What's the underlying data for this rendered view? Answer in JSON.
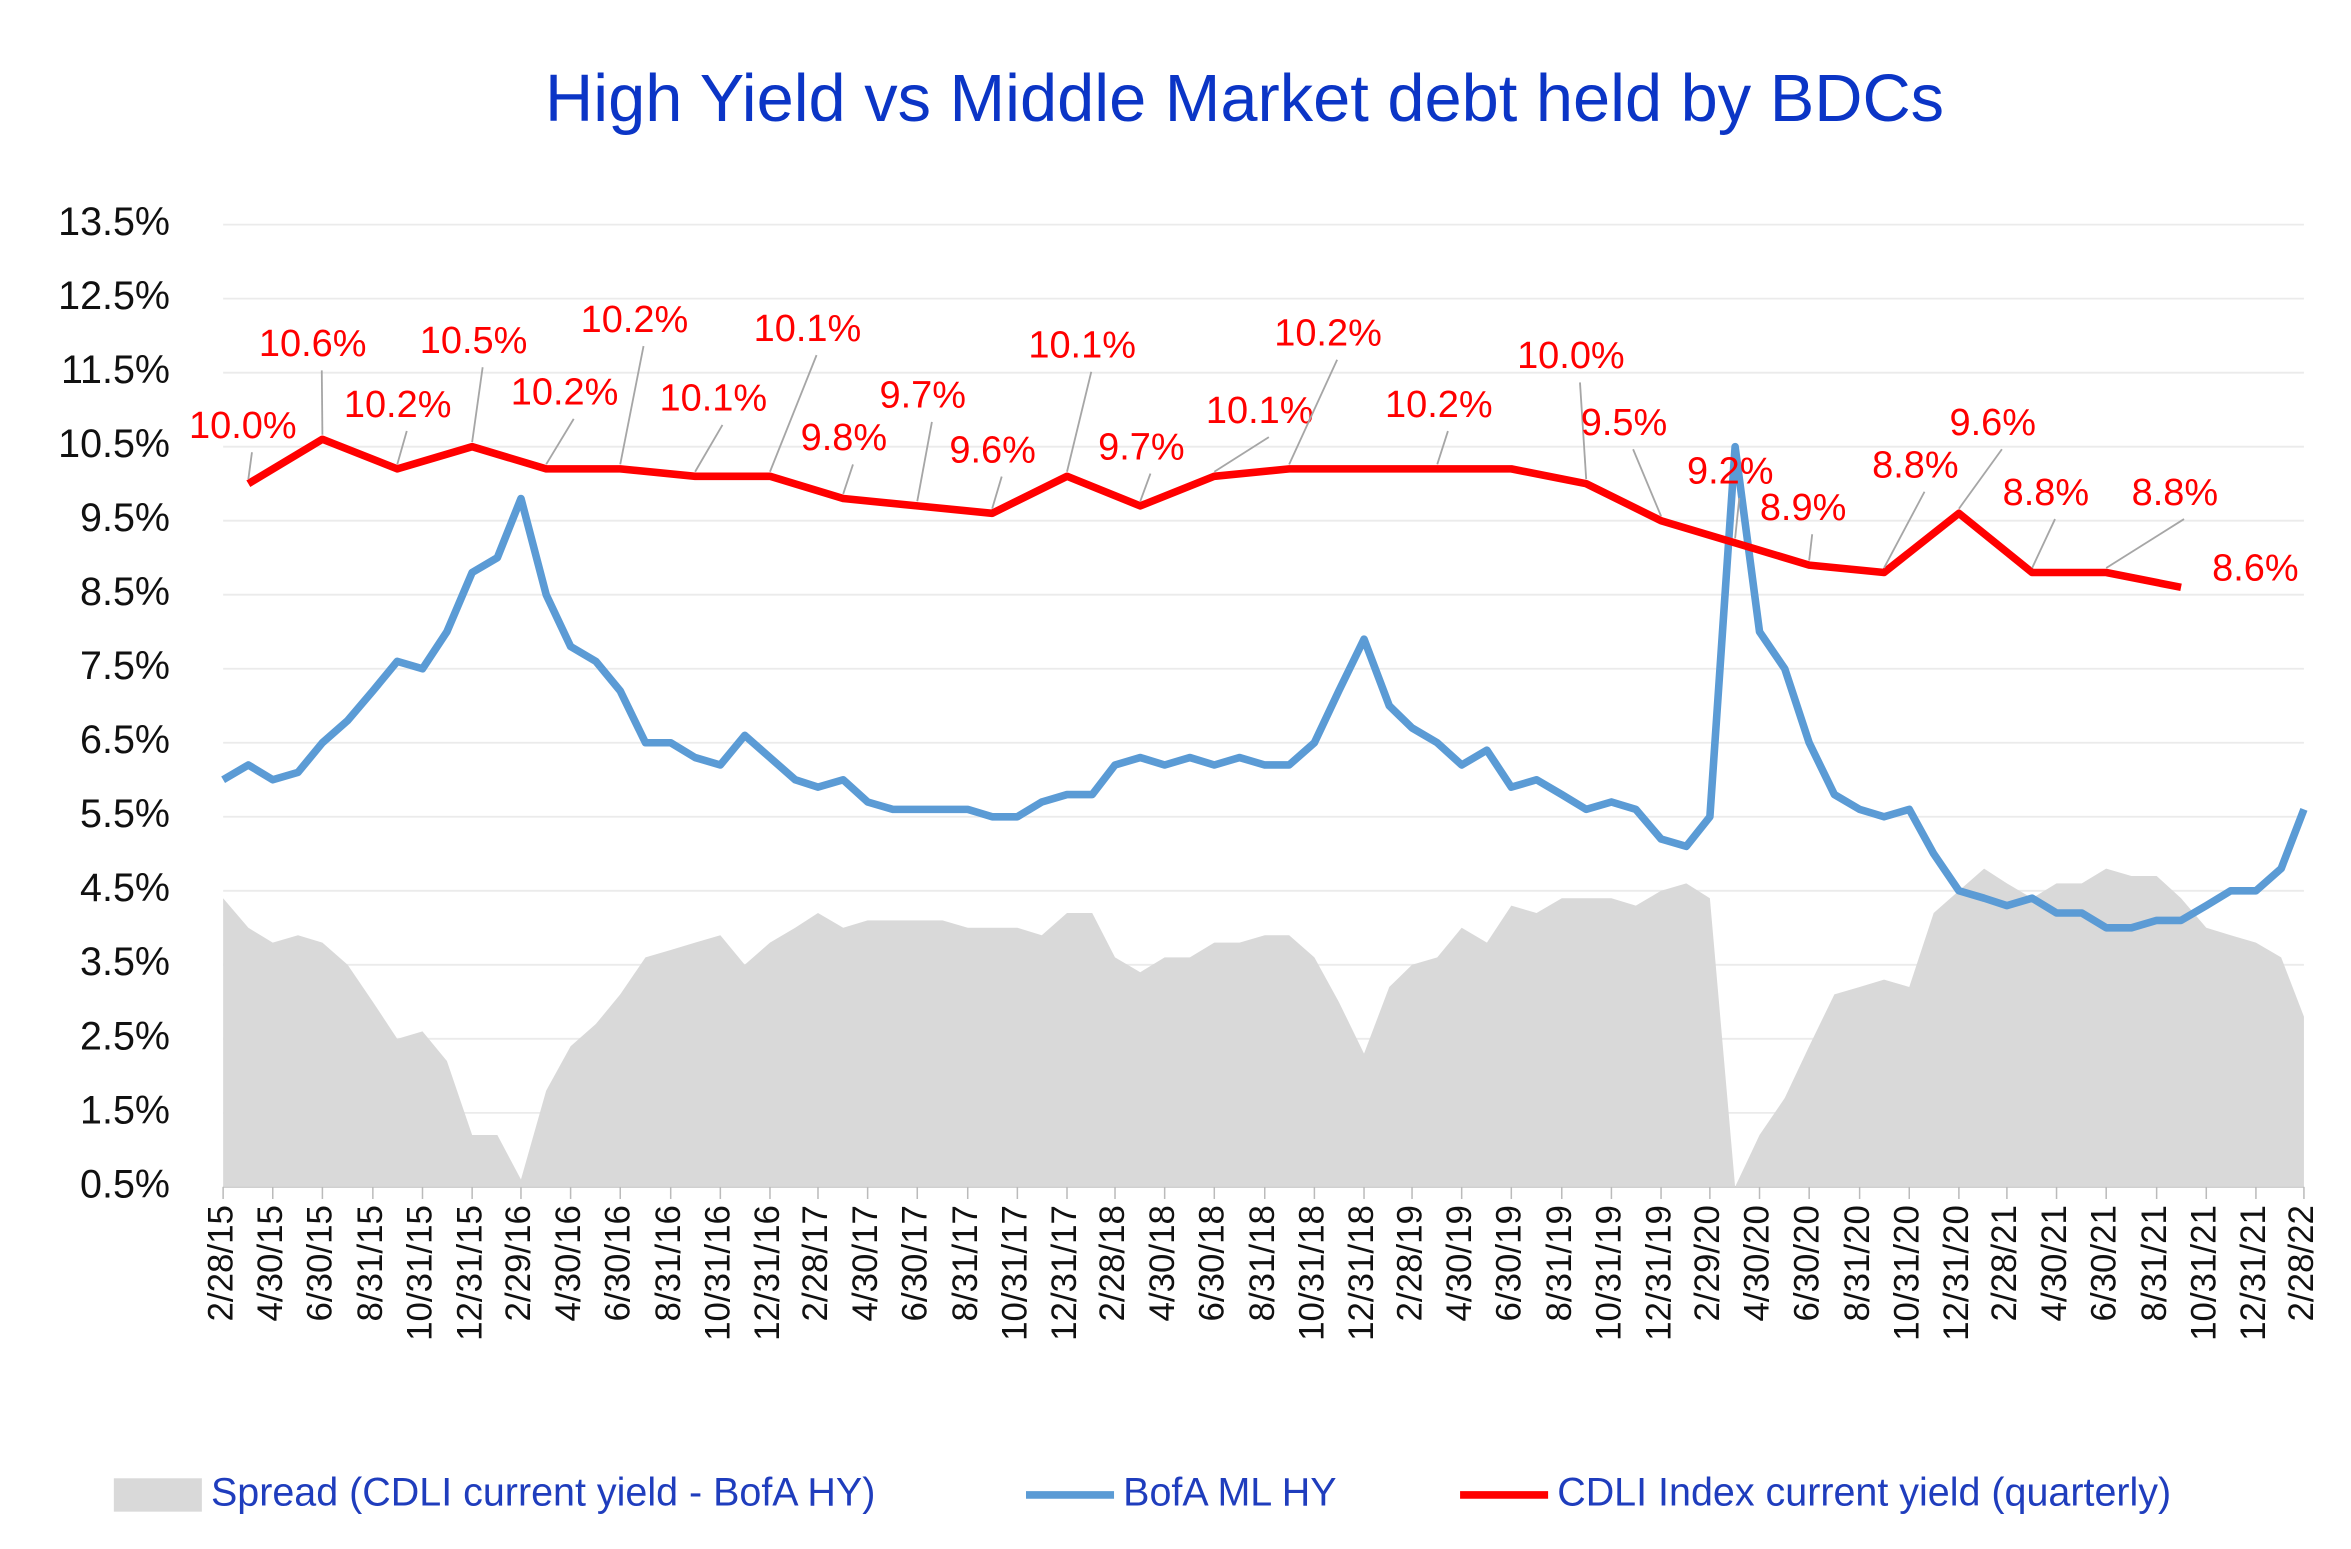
{
  "chart_data": {
    "type": "combo",
    "title": "High Yield  vs  Middle Market debt held by BDCs",
    "x": [
      "2/28/15",
      "3/31/15",
      "4/30/15",
      "5/31/15",
      "6/30/15",
      "7/31/15",
      "8/31/15",
      "9/30/15",
      "10/31/15",
      "11/30/15",
      "12/31/15",
      "1/31/16",
      "2/29/16",
      "3/31/16",
      "4/30/16",
      "5/31/16",
      "6/30/16",
      "7/31/16",
      "8/31/16",
      "9/30/16",
      "10/31/16",
      "11/30/16",
      "12/31/16",
      "1/31/17",
      "2/28/17",
      "3/31/17",
      "4/30/17",
      "5/31/17",
      "6/30/17",
      "7/31/17",
      "8/31/17",
      "9/30/17",
      "10/31/17",
      "11/30/17",
      "12/31/17",
      "1/31/18",
      "2/28/18",
      "3/31/18",
      "4/30/18",
      "5/31/18",
      "6/30/18",
      "7/31/18",
      "8/31/18",
      "9/30/18",
      "10/31/18",
      "11/30/18",
      "12/31/18",
      "1/31/19",
      "2/28/19",
      "3/31/19",
      "4/30/19",
      "5/31/19",
      "6/30/19",
      "7/31/19",
      "8/31/19",
      "9/30/19",
      "10/31/19",
      "11/30/19",
      "12/31/19",
      "1/31/20",
      "2/29/20",
      "3/31/20",
      "4/30/20",
      "5/31/20",
      "6/30/20",
      "7/31/20",
      "8/31/20",
      "9/30/20",
      "10/31/20",
      "11/30/20",
      "12/31/20",
      "1/31/21",
      "2/28/21",
      "3/31/21",
      "4/30/21",
      "5/31/21",
      "6/30/21",
      "7/31/21",
      "8/31/21",
      "9/30/21",
      "10/31/21",
      "11/30/21",
      "12/31/21",
      "1/31/22",
      "2/28/22"
    ],
    "series": [
      {
        "name": "Spread (CDLI current yield - BofA HY)",
        "kind": "area",
        "color": "#d9d9d9",
        "values": [
          4.4,
          4.0,
          3.8,
          3.9,
          3.8,
          3.5,
          3.0,
          2.5,
          2.6,
          2.2,
          1.2,
          1.2,
          0.6,
          1.8,
          2.4,
          2.7,
          3.1,
          3.6,
          3.7,
          3.8,
          3.9,
          3.5,
          3.8,
          4.0,
          4.2,
          4.0,
          4.1,
          4.1,
          4.1,
          4.1,
          4.0,
          4.0,
          4.0,
          3.9,
          4.2,
          4.2,
          3.6,
          3.4,
          3.6,
          3.6,
          3.8,
          3.8,
          3.9,
          3.9,
          3.6,
          3.0,
          2.3,
          3.2,
          3.5,
          3.6,
          4.0,
          3.8,
          4.3,
          4.2,
          4.4,
          4.4,
          4.4,
          4.3,
          4.5,
          4.6,
          4.4,
          0.5,
          1.2,
          1.7,
          2.4,
          3.1,
          3.2,
          3.3,
          3.2,
          4.2,
          4.5,
          4.8,
          4.6,
          4.4,
          4.6,
          4.6,
          4.8,
          4.7,
          4.7,
          4.4,
          4.0,
          3.9,
          3.8,
          3.6,
          2.8
        ]
      },
      {
        "name": "BofA ML HY",
        "kind": "line",
        "color": "#5b9bd5",
        "values": [
          6.0,
          6.2,
          6.0,
          6.1,
          6.5,
          6.8,
          7.2,
          7.6,
          7.5,
          8.0,
          8.8,
          9.0,
          9.8,
          8.5,
          7.8,
          7.6,
          7.2,
          6.5,
          6.5,
          6.3,
          6.2,
          6.6,
          6.3,
          6.0,
          5.9,
          6.0,
          5.7,
          5.6,
          5.6,
          5.6,
          5.6,
          5.5,
          5.5,
          5.7,
          5.8,
          5.8,
          6.2,
          6.3,
          6.2,
          6.3,
          6.2,
          6.3,
          6.2,
          6.2,
          6.5,
          7.2,
          7.9,
          7.0,
          6.7,
          6.5,
          6.2,
          6.4,
          5.9,
          6.0,
          5.8,
          5.6,
          5.7,
          5.6,
          5.2,
          5.1,
          5.5,
          10.5,
          8.0,
          7.5,
          6.5,
          5.8,
          5.6,
          5.5,
          5.6,
          5.0,
          4.5,
          4.4,
          4.3,
          4.4,
          4.2,
          4.2,
          4.0,
          4.0,
          4.1,
          4.1,
          4.3,
          4.5,
          4.5,
          4.8,
          5.6
        ]
      },
      {
        "name": "CDLI Index current yield (quarterly)",
        "kind": "line",
        "color": "#ff0000",
        "x": [
          "3/31/15",
          "6/30/15",
          "9/30/15",
          "12/31/15",
          "3/31/16",
          "6/30/16",
          "9/30/16",
          "12/31/16",
          "3/31/17",
          "6/30/17",
          "9/30/17",
          "12/31/17",
          "3/31/18",
          "6/30/18",
          "9/30/18",
          "12/31/18",
          "3/31/19",
          "6/30/19",
          "9/30/19",
          "12/31/19",
          "3/31/20",
          "6/30/20",
          "9/30/20",
          "12/31/20",
          "3/31/21",
          "6/30/21",
          "9/30/21"
        ],
        "values": [
          10.0,
          10.6,
          10.2,
          10.5,
          10.2,
          10.2,
          10.1,
          10.1,
          9.8,
          9.7,
          9.6,
          10.1,
          9.7,
          10.1,
          10.2,
          10.2,
          10.2,
          10.2,
          10.0,
          9.5,
          9.2,
          8.9,
          8.8,
          9.6,
          8.8,
          8.8,
          8.6
        ],
        "value_labels": [
          "10.0%",
          "10.6%",
          "10.2%",
          "10.5%",
          "10.2%",
          "10.2%",
          "10.1%",
          "10.1%",
          "9.8%",
          "9.7%",
          "9.6%",
          "10.1%",
          "9.7%",
          "10.1%",
          "10.2%",
          null,
          "10.2%",
          null,
          "10.0%",
          "9.5%",
          "9.2%",
          "8.9%",
          "8.8%",
          "9.6%",
          "8.8%",
          "8.8%",
          "8.6%"
        ]
      }
    ],
    "xlim": [
      "2/28/15",
      "2/28/22"
    ],
    "xticks": [
      "2/28/15",
      "4/30/15",
      "6/30/15",
      "8/31/15",
      "10/31/15",
      "12/31/15",
      "2/29/16",
      "4/30/16",
      "6/30/16",
      "8/31/16",
      "10/31/16",
      "12/31/16",
      "2/28/17",
      "4/30/17",
      "6/30/17",
      "8/31/17",
      "10/31/17",
      "12/31/17",
      "2/28/18",
      "4/30/18",
      "6/30/18",
      "8/31/18",
      "10/31/18",
      "12/31/18",
      "2/28/19",
      "4/30/19",
      "6/30/19",
      "8/31/19",
      "10/31/19",
      "12/31/19",
      "2/29/20",
      "4/30/20",
      "6/30/20",
      "8/31/20",
      "10/31/20",
      "12/31/20",
      "2/28/21",
      "4/30/21",
      "6/30/21",
      "8/31/21",
      "10/31/21",
      "12/31/21",
      "2/28/22"
    ],
    "ylim": [
      0.5,
      13.5
    ],
    "yticks": [
      {
        "value": 0.5,
        "label": "0.5%"
      },
      {
        "value": 1.5,
        "label": "1.5%"
      },
      {
        "value": 2.5,
        "label": "2.5%"
      },
      {
        "value": 3.5,
        "label": "3.5%"
      },
      {
        "value": 4.5,
        "label": "4.5%"
      },
      {
        "value": 5.5,
        "label": "5.5%"
      },
      {
        "value": 6.5,
        "label": "6.5%"
      },
      {
        "value": 7.5,
        "label": "7.5%"
      },
      {
        "value": 8.5,
        "label": "8.5%"
      },
      {
        "value": 9.5,
        "label": "9.5%"
      },
      {
        "value": 10.5,
        "label": "10.5%"
      },
      {
        "value": 11.5,
        "label": "11.5%"
      },
      {
        "value": 12.5,
        "label": "12.5%"
      },
      {
        "value": 13.5,
        "label": "13.5%"
      }
    ],
    "grid": true,
    "legend": "bottom"
  }
}
